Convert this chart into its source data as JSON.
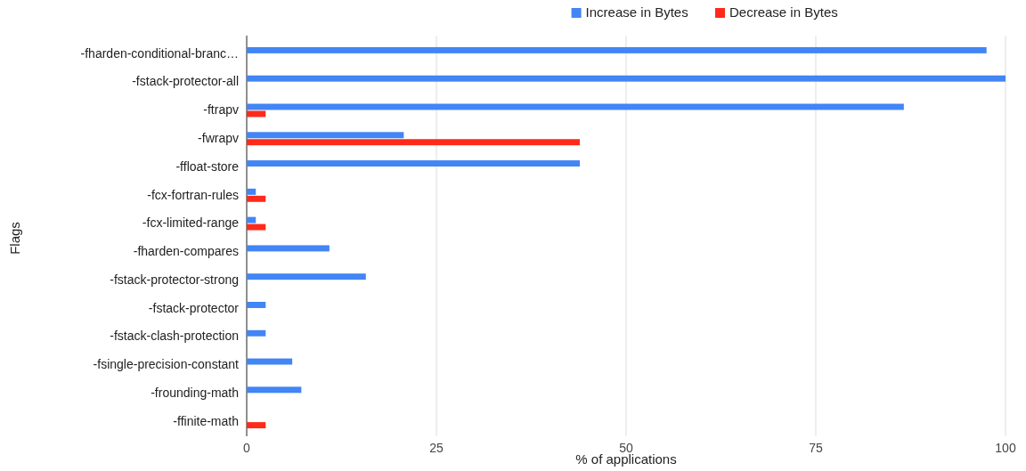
{
  "chart_data": {
    "type": "bar",
    "orientation": "horizontal",
    "xlabel": "% of applications",
    "ylabel": "Flags",
    "categories": [
      "-fharden-conditional-branc…",
      "-fstack-protector-all",
      "-ftrapv",
      "-fwrapv",
      "-ffloat-store",
      "-fcx-fortran-rules",
      "-fcx-limited-range",
      "-fharden-compares",
      "-fstack-protector-strong",
      "-fstack-protector",
      "-fstack-clash-protection",
      "-fsingle-precision-constant",
      "-frounding-math",
      "-ffinite-math"
    ],
    "series": [
      {
        "name": "Increase in Bytes",
        "color": "#4285f4",
        "values": [
          97.5,
          100,
          86.6,
          20.7,
          43.9,
          1.2,
          1.2,
          10.9,
          15.7,
          2.5,
          2.5,
          6.0,
          7.2,
          null
        ]
      },
      {
        "name": "Decrease in Bytes",
        "color": "#ff2a1a",
        "values": [
          null,
          null,
          2.5,
          43.9,
          null,
          2.5,
          2.5,
          null,
          null,
          null,
          null,
          null,
          null,
          2.5
        ]
      }
    ],
    "xlim": [
      0,
      100
    ],
    "xticks": [
      0,
      25,
      50,
      75,
      100
    ],
    "grid": "x",
    "legend": "top"
  }
}
